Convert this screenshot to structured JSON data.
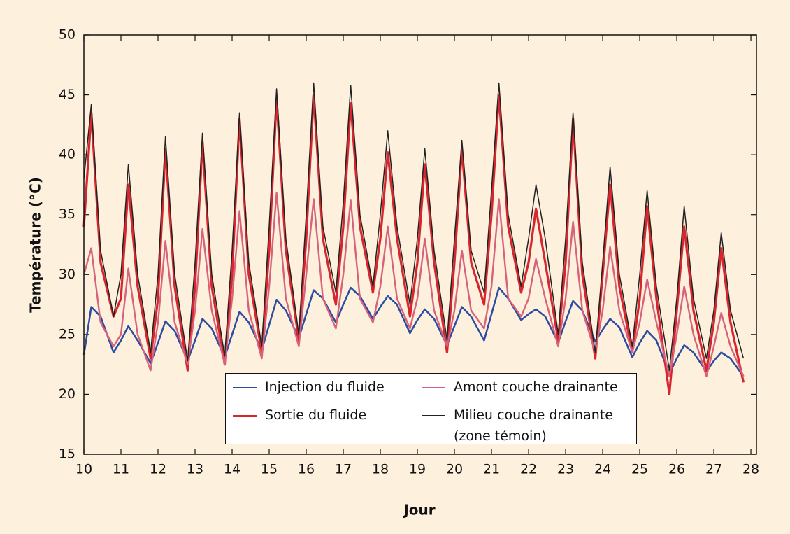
{
  "chart_data": {
    "type": "line",
    "xlabel": "Jour",
    "ylabel": "Température (°C)",
    "xlim": [
      10,
      28.15
    ],
    "ylim": [
      15,
      50
    ],
    "xticks": [
      10,
      11,
      12,
      13,
      14,
      15,
      16,
      17,
      18,
      19,
      20,
      21,
      22,
      23,
      24,
      25,
      26,
      27,
      28
    ],
    "yticks": [
      15,
      20,
      25,
      30,
      35,
      40,
      45,
      50
    ],
    "x": [
      10,
      10.2,
      10.45,
      10.8,
      11,
      11.2,
      11.45,
      11.8,
      12,
      12.2,
      12.45,
      12.8,
      13,
      13.2,
      13.45,
      13.8,
      14,
      14.2,
      14.45,
      14.8,
      15,
      15.2,
      15.45,
      15.8,
      16,
      16.2,
      16.45,
      16.8,
      17,
      17.2,
      17.45,
      17.8,
      18,
      18.2,
      18.45,
      18.8,
      19,
      19.2,
      19.45,
      19.8,
      20,
      20.2,
      20.45,
      20.8,
      21,
      21.2,
      21.45,
      21.8,
      22,
      22.2,
      22.45,
      22.8,
      23,
      23.2,
      23.45,
      23.8,
      24,
      24.2,
      24.45,
      24.8,
      25,
      25.2,
      25.45,
      25.8,
      26,
      26.2,
      26.45,
      26.8,
      27,
      27.2,
      27.45,
      27.8
    ],
    "series": [
      {
        "name": "Injection du fluide",
        "color": "#2b4c9f",
        "values": [
          23.3,
          27.3,
          26.5,
          23.5,
          24.5,
          25.7,
          24.5,
          22.6,
          24.3,
          26.1,
          25.3,
          22.8,
          24.5,
          26.3,
          25.5,
          23.1,
          25,
          26.9,
          26,
          23.7,
          25.8,
          27.9,
          27,
          24.7,
          26.7,
          28.7,
          28,
          26,
          27.5,
          28.9,
          28.2,
          26.3,
          27.3,
          28.2,
          27.5,
          25.1,
          26.2,
          27.1,
          26.3,
          24.1,
          25.7,
          27.3,
          26.5,
          24.5,
          26.7,
          28.9,
          28,
          26.2,
          26.7,
          27.1,
          26.5,
          24.3,
          26.1,
          27.8,
          27,
          24.4,
          25.4,
          26.3,
          25.6,
          23.1,
          24.3,
          25.3,
          24.5,
          21.7,
          23,
          24.1,
          23.5,
          21.9,
          22.8,
          23.5,
          23,
          21.5
        ]
      },
      {
        "name": "Sortie du fluide",
        "color": "#d8262f",
        "values": [
          34,
          43.5,
          31,
          26.5,
          28,
          37.5,
          29,
          23,
          28,
          40.5,
          29,
          22,
          29,
          41,
          29,
          22.5,
          30,
          43,
          30,
          23.5,
          32,
          44.7,
          32,
          24.5,
          33,
          45,
          33,
          27.5,
          34,
          44.3,
          34,
          28.5,
          33,
          40.2,
          33,
          26.5,
          31,
          39.2,
          31,
          23.5,
          31,
          40.5,
          31,
          27.5,
          35,
          45,
          34,
          28.5,
          31,
          35.5,
          31,
          24.5,
          31,
          43,
          30,
          23,
          30,
          37.5,
          29,
          23.5,
          28,
          35.7,
          28,
          20,
          27,
          34,
          27,
          22,
          26,
          32.2,
          26,
          21
        ]
      },
      {
        "name": "Amont couche drainante",
        "color": "#d9627b",
        "values": [
          30,
          32.2,
          26,
          24,
          25,
          30.5,
          25,
          22,
          26,
          32.8,
          26,
          22.5,
          27,
          33.8,
          27,
          22.5,
          28,
          35.3,
          27,
          23,
          29,
          36.8,
          28,
          24,
          30,
          36.3,
          28,
          25.5,
          30,
          36.2,
          28,
          26,
          29,
          34,
          28,
          25.5,
          28,
          33,
          27,
          24,
          27,
          32,
          27,
          25.5,
          29,
          36.3,
          28,
          26.5,
          28,
          31.3,
          28,
          24,
          28,
          34.4,
          27,
          23.5,
          27,
          32.3,
          27,
          23.5,
          26,
          29.6,
          26,
          21.5,
          25,
          29,
          25,
          21.5,
          24,
          26.8,
          24,
          21.5
        ]
      },
      {
        "name": "Milieu couche drainante (zone témoin)",
        "color": "#222222",
        "values": [
          38,
          44.2,
          32,
          26.5,
          30,
          39.2,
          30,
          23.5,
          30,
          41.5,
          30,
          22.8,
          31,
          41.8,
          30,
          23.2,
          32,
          43.5,
          31,
          24,
          34,
          45.5,
          33,
          25,
          35,
          46,
          34,
          28.5,
          36,
          45.8,
          35,
          29,
          35,
          42,
          34,
          27.5,
          33,
          40.5,
          32,
          24.5,
          33,
          41.2,
          32,
          28.5,
          37,
          46,
          35,
          29,
          33,
          37.5,
          33,
          25,
          33,
          43.5,
          31,
          23.5,
          31,
          39,
          30,
          24,
          30,
          37,
          29,
          22,
          28,
          35.7,
          28,
          23,
          27,
          33.5,
          27,
          23
        ]
      }
    ]
  }
}
